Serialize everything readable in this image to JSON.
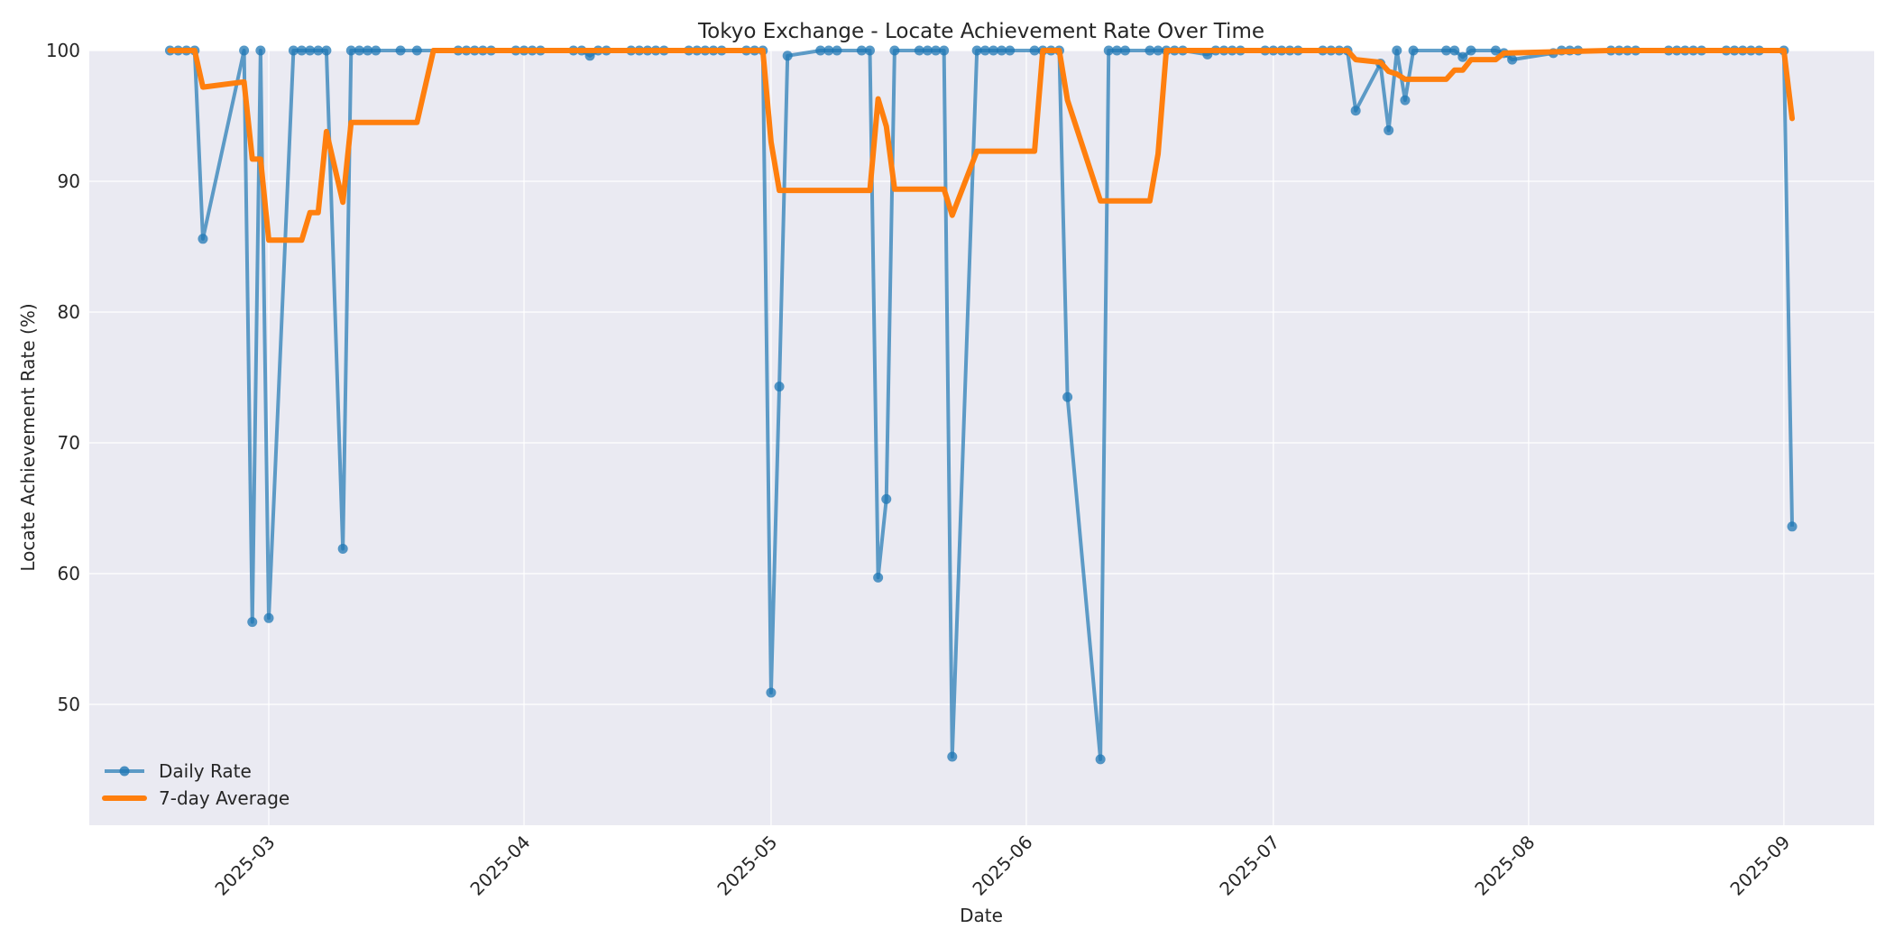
{
  "chart_data": {
    "type": "line",
    "title": "Tokyo Exchange - Locate Achievement Rate Over Time",
    "xlabel": "Date",
    "ylabel": "Locate Achievement Rate (%)",
    "ylim": [
      40.8,
      100
    ],
    "xlim": [
      "2025-02-07",
      "2025-09-11"
    ],
    "yticks": [
      50,
      60,
      70,
      80,
      90,
      100
    ],
    "xticks": [
      "2025-03",
      "2025-04",
      "2025-05",
      "2025-06",
      "2025-07",
      "2025-08",
      "2025-09"
    ],
    "grid": true,
    "legend_position": "lower left",
    "colors": {
      "daily": "#1f77b4",
      "avg": "#ff7f0e",
      "background": "#eaeaf2",
      "grid": "#ffffff"
    },
    "series": [
      {
        "name": "Daily Rate",
        "style": "line-with-markers",
        "points": [
          [
            "2025-02-17",
            100
          ],
          [
            "2025-02-18",
            100
          ],
          [
            "2025-02-19",
            100
          ],
          [
            "2025-02-20",
            100
          ],
          [
            "2025-02-21",
            85.6
          ],
          [
            "2025-02-26",
            100
          ],
          [
            "2025-02-27",
            56.3
          ],
          [
            "2025-02-28",
            100
          ],
          [
            "2025-03-01",
            56.6
          ],
          [
            "2025-03-04",
            100
          ],
          [
            "2025-03-05",
            100
          ],
          [
            "2025-03-06",
            100
          ],
          [
            "2025-03-07",
            100
          ],
          [
            "2025-03-08",
            100
          ],
          [
            "2025-03-10",
            61.9
          ],
          [
            "2025-03-11",
            100
          ],
          [
            "2025-03-12",
            100
          ],
          [
            "2025-03-13",
            100
          ],
          [
            "2025-03-14",
            100
          ],
          [
            "2025-03-17",
            100
          ],
          [
            "2025-03-19",
            100
          ],
          [
            "2025-03-24",
            100
          ],
          [
            "2025-03-25",
            100
          ],
          [
            "2025-03-26",
            100
          ],
          [
            "2025-03-27",
            100
          ],
          [
            "2025-03-28",
            100
          ],
          [
            "2025-03-31",
            100
          ],
          [
            "2025-04-01",
            100
          ],
          [
            "2025-04-02",
            100
          ],
          [
            "2025-04-03",
            100
          ],
          [
            "2025-04-07",
            100
          ],
          [
            "2025-04-08",
            100
          ],
          [
            "2025-04-09",
            99.6
          ],
          [
            "2025-04-10",
            100
          ],
          [
            "2025-04-11",
            100
          ],
          [
            "2025-04-14",
            100
          ],
          [
            "2025-04-15",
            100
          ],
          [
            "2025-04-16",
            100
          ],
          [
            "2025-04-17",
            100
          ],
          [
            "2025-04-18",
            100
          ],
          [
            "2025-04-21",
            100
          ],
          [
            "2025-04-22",
            100
          ],
          [
            "2025-04-23",
            100
          ],
          [
            "2025-04-24",
            100
          ],
          [
            "2025-04-25",
            100
          ],
          [
            "2025-04-28",
            100
          ],
          [
            "2025-04-29",
            100
          ],
          [
            "2025-04-30",
            100
          ],
          [
            "2025-05-01",
            50.9
          ],
          [
            "2025-05-02",
            74.3
          ],
          [
            "2025-05-03",
            99.6
          ],
          [
            "2025-05-07",
            100
          ],
          [
            "2025-05-08",
            100
          ],
          [
            "2025-05-09",
            100
          ],
          [
            "2025-05-12",
            100
          ],
          [
            "2025-05-13",
            100
          ],
          [
            "2025-05-14",
            59.7
          ],
          [
            "2025-05-15",
            65.7
          ],
          [
            "2025-05-16",
            100
          ],
          [
            "2025-05-19",
            100
          ],
          [
            "2025-05-20",
            100
          ],
          [
            "2025-05-21",
            100
          ],
          [
            "2025-05-22",
            100
          ],
          [
            "2025-05-23",
            46.0
          ],
          [
            "2025-05-26",
            100
          ],
          [
            "2025-05-27",
            100
          ],
          [
            "2025-05-28",
            100
          ],
          [
            "2025-05-29",
            100
          ],
          [
            "2025-05-30",
            100
          ],
          [
            "2025-06-02",
            100
          ],
          [
            "2025-06-03",
            100
          ],
          [
            "2025-06-04",
            100
          ],
          [
            "2025-06-05",
            100
          ],
          [
            "2025-06-06",
            73.5
          ],
          [
            "2025-06-10",
            45.8
          ],
          [
            "2025-06-11",
            100
          ],
          [
            "2025-06-12",
            100
          ],
          [
            "2025-06-13",
            100
          ],
          [
            "2025-06-16",
            100
          ],
          [
            "2025-06-17",
            100
          ],
          [
            "2025-06-18",
            100
          ],
          [
            "2025-06-19",
            100
          ],
          [
            "2025-06-20",
            100
          ],
          [
            "2025-06-23",
            99.7
          ],
          [
            "2025-06-24",
            100
          ],
          [
            "2025-06-25",
            100
          ],
          [
            "2025-06-26",
            100
          ],
          [
            "2025-06-27",
            100
          ],
          [
            "2025-06-30",
            100
          ],
          [
            "2025-07-01",
            100
          ],
          [
            "2025-07-02",
            100
          ],
          [
            "2025-07-03",
            100
          ],
          [
            "2025-07-04",
            100
          ],
          [
            "2025-07-07",
            100
          ],
          [
            "2025-07-08",
            100
          ],
          [
            "2025-07-09",
            100
          ],
          [
            "2025-07-10",
            100
          ],
          [
            "2025-07-11",
            95.4
          ],
          [
            "2025-07-14",
            99.0
          ],
          [
            "2025-07-15",
            93.9
          ],
          [
            "2025-07-16",
            100
          ],
          [
            "2025-07-17",
            96.2
          ],
          [
            "2025-07-18",
            100
          ],
          [
            "2025-07-22",
            100
          ],
          [
            "2025-07-23",
            100
          ],
          [
            "2025-07-24",
            99.5
          ],
          [
            "2025-07-25",
            100
          ],
          [
            "2025-07-28",
            100
          ],
          [
            "2025-07-29",
            99.8
          ],
          [
            "2025-07-30",
            99.3
          ],
          [
            "2025-08-04",
            99.8
          ],
          [
            "2025-08-05",
            100
          ],
          [
            "2025-08-06",
            100
          ],
          [
            "2025-08-07",
            100
          ],
          [
            "2025-08-11",
            100
          ],
          [
            "2025-08-12",
            100
          ],
          [
            "2025-08-13",
            100
          ],
          [
            "2025-08-14",
            100
          ],
          [
            "2025-08-18",
            100
          ],
          [
            "2025-08-19",
            100
          ],
          [
            "2025-08-20",
            100
          ],
          [
            "2025-08-21",
            100
          ],
          [
            "2025-08-22",
            100
          ],
          [
            "2025-08-25",
            100
          ],
          [
            "2025-08-26",
            100
          ],
          [
            "2025-08-27",
            100
          ],
          [
            "2025-08-28",
            100
          ],
          [
            "2025-08-29",
            100
          ],
          [
            "2025-09-01",
            100
          ],
          [
            "2025-09-02",
            63.6
          ]
        ]
      },
      {
        "name": "7-day Average",
        "style": "thick-line",
        "points": [
          [
            "2025-02-17",
            100
          ],
          [
            "2025-02-20",
            100
          ],
          [
            "2025-02-21",
            97.2
          ],
          [
            "2025-02-26",
            97.6
          ],
          [
            "2025-02-27",
            91.7
          ],
          [
            "2025-02-28",
            91.7
          ],
          [
            "2025-03-01",
            85.5
          ],
          [
            "2025-03-05",
            85.5
          ],
          [
            "2025-03-06",
            87.6
          ],
          [
            "2025-03-07",
            87.6
          ],
          [
            "2025-03-08",
            93.8
          ],
          [
            "2025-03-10",
            88.4
          ],
          [
            "2025-03-11",
            94.5
          ],
          [
            "2025-03-19",
            94.5
          ],
          [
            "2025-03-21",
            100
          ],
          [
            "2025-04-30",
            100
          ],
          [
            "2025-05-01",
            93.0
          ],
          [
            "2025-05-02",
            89.3
          ],
          [
            "2025-05-13",
            89.3
          ],
          [
            "2025-05-14",
            96.3
          ],
          [
            "2025-05-15",
            94.2
          ],
          [
            "2025-05-16",
            89.4
          ],
          [
            "2025-05-22",
            89.4
          ],
          [
            "2025-05-23",
            87.4
          ],
          [
            "2025-05-26",
            92.3
          ],
          [
            "2025-06-02",
            92.3
          ],
          [
            "2025-06-03",
            100
          ],
          [
            "2025-06-05",
            100
          ],
          [
            "2025-06-06",
            96.2
          ],
          [
            "2025-06-10",
            88.5
          ],
          [
            "2025-06-16",
            88.5
          ],
          [
            "2025-06-17",
            92.1
          ],
          [
            "2025-06-18",
            100
          ],
          [
            "2025-07-10",
            100
          ],
          [
            "2025-07-11",
            99.3
          ],
          [
            "2025-07-14",
            99.1
          ],
          [
            "2025-07-15",
            98.4
          ],
          [
            "2025-07-16",
            98.2
          ],
          [
            "2025-07-17",
            97.8
          ],
          [
            "2025-07-22",
            97.8
          ],
          [
            "2025-07-23",
            98.5
          ],
          [
            "2025-07-24",
            98.5
          ],
          [
            "2025-07-25",
            99.3
          ],
          [
            "2025-07-28",
            99.3
          ],
          [
            "2025-07-29",
            99.8
          ],
          [
            "2025-08-04",
            99.9
          ],
          [
            "2025-08-11",
            100
          ],
          [
            "2025-09-01",
            100
          ],
          [
            "2025-09-02",
            94.8
          ]
        ]
      }
    ]
  }
}
